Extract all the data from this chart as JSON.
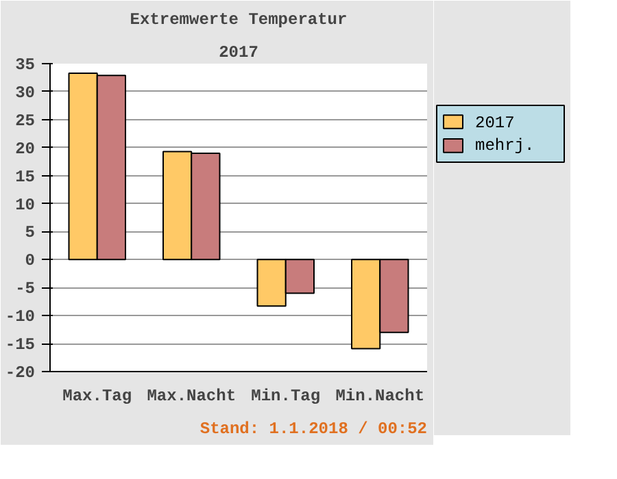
{
  "chart_data": {
    "type": "bar",
    "title": "Extremwerte Temperatur",
    "subtitle": "2017",
    "categories": [
      "Max.Tag",
      "Max.Nacht",
      "Min.Tag",
      "Min.Nacht"
    ],
    "series": [
      {
        "name": "2017",
        "color": "#ffc966",
        "values": [
          33.3,
          19.3,
          -8.3,
          -15.9
        ]
      },
      {
        "name": "mehrj.",
        "color": "#c87c7c",
        "values": [
          32.9,
          19.0,
          -6.0,
          -13.0
        ]
      }
    ],
    "ylim": [
      -20,
      35
    ],
    "yticks": [
      -20,
      -15,
      -10,
      -5,
      0,
      5,
      10,
      15,
      20,
      25,
      30,
      35
    ],
    "grid": "y",
    "legend": "top right",
    "annotations": [
      "Stand: 1.1.2018 / 00:52"
    ]
  }
}
